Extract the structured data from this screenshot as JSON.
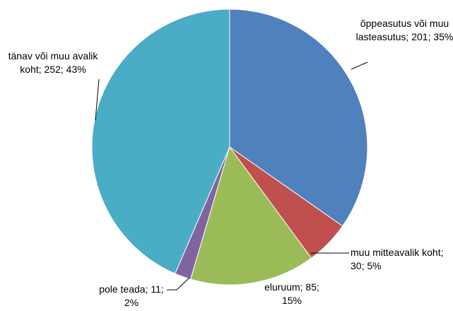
{
  "chart_data": {
    "type": "pie",
    "values": [
      201,
      30,
      85,
      11,
      252
    ],
    "value_labels": [
      "õppeasutus või muu lasteasutus; 201; 35%",
      "muu mitteavalik koht; 30; 5%",
      "eluruum; 85; 15%",
      "pole teada; 11; 2%",
      "tänav või muu avalik koht; 252; 43%"
    ],
    "colors": [
      "#4f81bd",
      "#c0504d",
      "#9bbb59",
      "#8064a2",
      "#4bacc6"
    ]
  }
}
